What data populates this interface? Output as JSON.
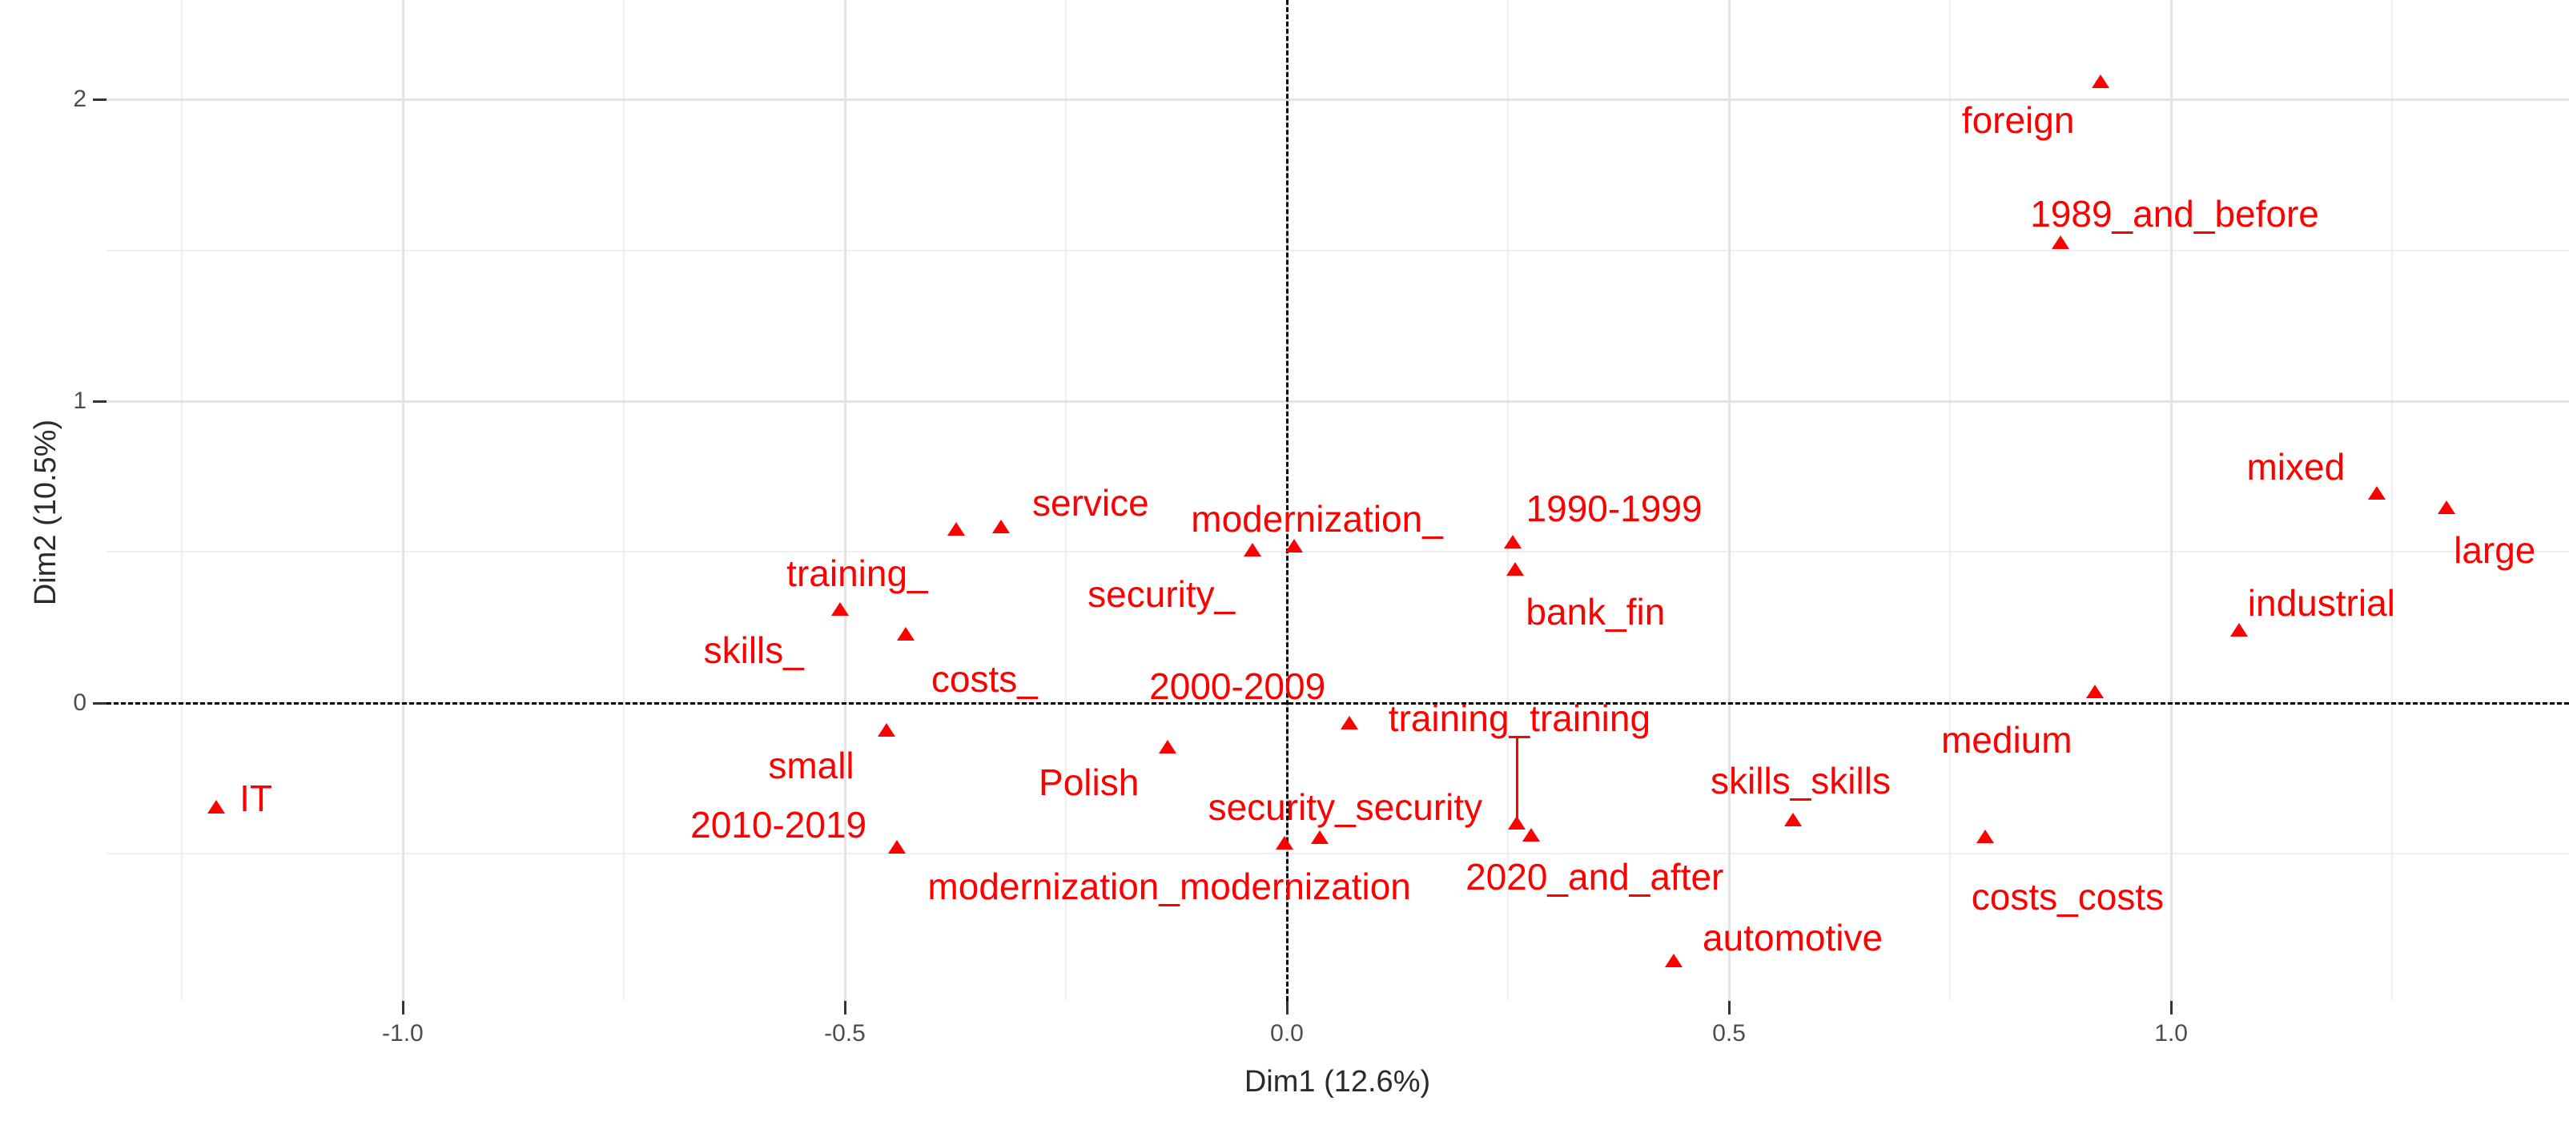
{
  "chart_data": {
    "type": "scatter",
    "title": "",
    "xlabel": "Dim1 (12.6%)",
    "ylabel": "Dim2 (10.5%)",
    "xlim": [
      -1.335,
      1.45
    ],
    "ylim": [
      -0.987,
      2.329
    ],
    "grid": true,
    "legend_position": "none",
    "marker": "triangle-up",
    "point_color": "#ff0000",
    "label_color": "#ff0000",
    "grid_major_color": "#e3e3e3",
    "grid_minor_color": "#efefef",
    "reference_line_color": "#000000",
    "axis_text_color": "#4d4d4d",
    "axis_title_color": "#2b2b2b",
    "x_ticks": [
      -1.0,
      -0.5,
      0.0,
      0.5,
      1.0
    ],
    "x_tick_labels": [
      "-1.0",
      "-0.5",
      "0.0",
      "0.5",
      "1.0"
    ],
    "x_minor_ticks": [
      -1.25,
      -0.75,
      -0.25,
      0.25,
      0.75,
      1.25
    ],
    "y_ticks": [
      0,
      1,
      2
    ],
    "y_tick_labels": [
      "0",
      "1",
      "2"
    ],
    "y_minor_ticks": [
      -0.5,
      0.5,
      1.5
    ],
    "reference_lines": [
      {
        "axis": "x",
        "value": 0,
        "style": "dashed"
      },
      {
        "axis": "y",
        "value": 0,
        "style": "dashed"
      }
    ],
    "segments": [
      {
        "x": 0.26,
        "y_from": -0.111,
        "y_to": -0.382
      }
    ],
    "points": [
      {
        "label": "IT",
        "x": -1.211,
        "y": -0.345,
        "lx": -1.166,
        "ly": -0.316
      },
      {
        "label": "skills_",
        "x": -0.374,
        "y": 0.576,
        "lx": -0.603,
        "ly": 0.175
      },
      {
        "label": "training_",
        "x": -0.505,
        "y": 0.31,
        "lx": -0.486,
        "ly": 0.43
      },
      {
        "label": "costs_",
        "x": -0.431,
        "y": 0.228,
        "lx": -0.342,
        "ly": 0.08
      },
      {
        "label": "small",
        "x": -0.453,
        "y": -0.09,
        "lx": -0.538,
        "ly": -0.207
      },
      {
        "label": "2010-2019",
        "x": -0.441,
        "y": -0.477,
        "lx": -0.575,
        "ly": -0.403
      },
      {
        "label": "service",
        "x": -0.323,
        "y": 0.584,
        "lx": -0.222,
        "ly": 0.663
      },
      {
        "label": "security_",
        "x": -0.039,
        "y": 0.507,
        "lx": -0.142,
        "ly": 0.361
      },
      {
        "label": "modernization_",
        "x": 0.008,
        "y": 0.52,
        "lx": 0.034,
        "ly": 0.61
      },
      {
        "label": "Polish",
        "x": -0.135,
        "y": -0.146,
        "lx": -0.224,
        "ly": -0.263
      },
      {
        "label": "2000-2009",
        "x": 0.071,
        "y": -0.066,
        "lx": -0.056,
        "ly": 0.056
      },
      {
        "label": "security_security",
        "x": 0.037,
        "y": -0.446,
        "lx": 0.066,
        "ly": -0.345
      },
      {
        "label": "modernization_modernization",
        "x": -0.003,
        "y": -0.464,
        "lx": -0.133,
        "ly": -0.607
      },
      {
        "label": "training_training",
        "x": 0.26,
        "y": -0.398,
        "lx": 0.263,
        "ly": -0.05
      },
      {
        "label": "2020_and_after",
        "x": 0.276,
        "y": -0.438,
        "lx": 0.348,
        "ly": -0.576
      },
      {
        "label": "1990-1999",
        "x": 0.255,
        "y": 0.533,
        "lx": 0.37,
        "ly": 0.645
      },
      {
        "label": "bank_fin",
        "x": 0.258,
        "y": 0.443,
        "lx": 0.349,
        "ly": 0.302
      },
      {
        "label": "skills_skills",
        "x": 0.572,
        "y": -0.387,
        "lx": 0.581,
        "ly": -0.257
      },
      {
        "label": "automotive",
        "x": 0.437,
        "y": -0.854,
        "lx": 0.572,
        "ly": -0.777
      },
      {
        "label": "foreign",
        "x": 0.92,
        "y": 2.058,
        "lx": 0.827,
        "ly": 1.931
      },
      {
        "label": "1989_and_before",
        "x": 0.875,
        "y": 1.525,
        "lx": 1.004,
        "ly": 1.621
      },
      {
        "label": "mixed",
        "x": 1.233,
        "y": 0.695,
        "lx": 1.141,
        "ly": 0.782
      },
      {
        "label": "large",
        "x": 1.311,
        "y": 0.647,
        "lx": 1.366,
        "ly": 0.507
      },
      {
        "label": "industrial",
        "x": 1.077,
        "y": 0.241,
        "lx": 1.17,
        "ly": 0.332
      },
      {
        "label": "medium",
        "x": 0.914,
        "y": 0.037,
        "lx": 0.814,
        "ly": -0.122
      },
      {
        "label": "costs_costs",
        "x": 0.79,
        "y": -0.443,
        "lx": 0.883,
        "ly": -0.642
      }
    ]
  }
}
